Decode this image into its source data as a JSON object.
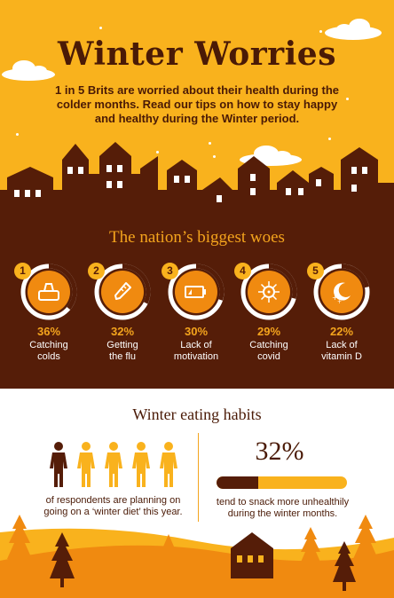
{
  "header": {
    "title": "Winter Worries",
    "subtitle": "1 in 5 Brits are worried about their health during the colder months. Read our tips on how to stay happy and healthy during the Winter period."
  },
  "woes": {
    "title": "The nation’s biggest woes",
    "items": [
      {
        "number": "1",
        "percent": "36%",
        "value": 0.36,
        "label_line1": "Catching",
        "label_line2": "colds",
        "icon": "tissue-box-icon"
      },
      {
        "number": "2",
        "percent": "32%",
        "value": 0.32,
        "label_line1": "Getting",
        "label_line2": "the flu",
        "icon": "thermometer-icon"
      },
      {
        "number": "3",
        "percent": "30%",
        "value": 0.3,
        "label_line1": "Lack of",
        "label_line2": "motivation",
        "icon": "low-battery-icon"
      },
      {
        "number": "4",
        "percent": "29%",
        "value": 0.29,
        "label_line1": "Catching",
        "label_line2": "covid",
        "icon": "virus-icon"
      },
      {
        "number": "5",
        "percent": "22%",
        "value": 0.22,
        "label_line1": "Lack of",
        "label_line2": "vitamin D",
        "icon": "moon-stars-icon"
      }
    ]
  },
  "habits": {
    "title": "Winter eating habits",
    "diet_text_line1": "of respondents are planning on",
    "diet_text_line2": "going on a ‘winter diet’ this year.",
    "diet_figures_highlighted": 1,
    "diet_figures_total": 5,
    "snack_percent": "32%",
    "snack_value": 0.32,
    "snack_text_line1": "tend to snack more unhealthily",
    "snack_text_line2": "during the winter months."
  },
  "colors": {
    "brand_yellow": "#f9b21d",
    "brand_orange": "#f4a41d",
    "dark_brown": "#551d08",
    "ring_orange": "#f08a10"
  }
}
